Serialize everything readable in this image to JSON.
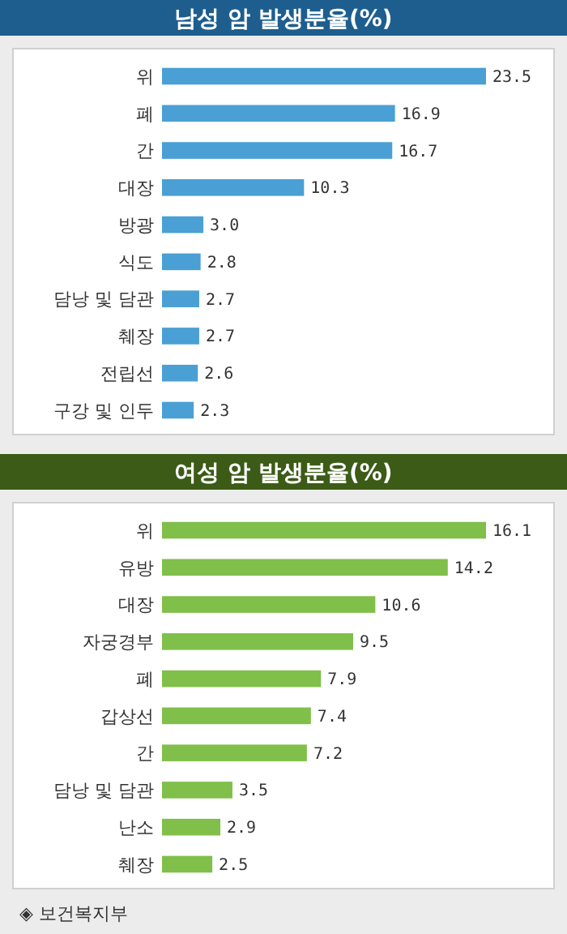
{
  "chart_data": [
    {
      "type": "bar",
      "orientation": "horizontal",
      "title": "남성 암 발생분율(%)",
      "categories": [
        "위",
        "폐",
        "간",
        "대장",
        "방광",
        "식도",
        "담낭 및 담관",
        "췌장",
        "전립선",
        "구강 및 인두"
      ],
      "values": [
        23.5,
        16.9,
        16.7,
        10.3,
        3.0,
        2.8,
        2.7,
        2.7,
        2.6,
        2.3
      ],
      "color": "#4a9fd4",
      "value_labels": [
        "23.5",
        "16.9",
        "16.7",
        "10.3",
        "3.0",
        "2.8",
        "2.7",
        "2.7",
        "2.6",
        "2.3"
      ]
    },
    {
      "type": "bar",
      "orientation": "horizontal",
      "title": "여성 암 발생분율(%)",
      "categories": [
        "위",
        "유방",
        "대장",
        "자궁경부",
        "폐",
        "갑상선",
        "간",
        "담낭 및 담관",
        "난소",
        "췌장"
      ],
      "values": [
        16.1,
        14.2,
        10.6,
        9.5,
        7.9,
        7.4,
        7.2,
        3.5,
        2.9,
        2.5
      ],
      "color": "#80bf4a",
      "value_labels": [
        "16.1",
        "14.2",
        "10.6",
        "9.5",
        "7.9",
        "7.4",
        "7.2",
        "3.5",
        "2.9",
        "2.5"
      ],
      "annotations": [
        "◈ 보건복지부"
      ]
    }
  ]
}
